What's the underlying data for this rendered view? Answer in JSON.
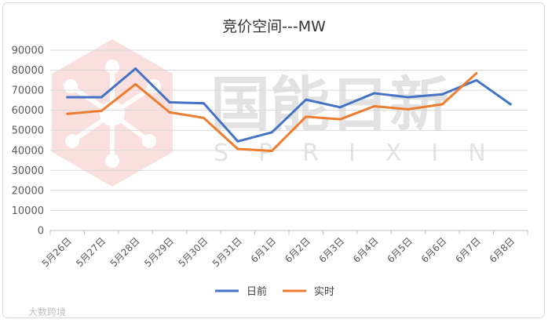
{
  "watermark": {
    "brand": "国能日新",
    "brand_en": "SPRIXIN"
  },
  "credit": "大数跨境",
  "chart_data": {
    "type": "line",
    "title": "竞价空间---MW",
    "xlabel": "",
    "ylabel": "",
    "categories": [
      "5月26日",
      "5月27日",
      "5月28日",
      "5月29日",
      "5月30日",
      "5月31日",
      "6月1日",
      "6月2日",
      "6月3日",
      "6月4日",
      "6月5日",
      "6月6日",
      "6月7日",
      "6月8日"
    ],
    "ylim": [
      0,
      90000
    ],
    "yticks": [
      "0",
      "10000",
      "20000",
      "30000",
      "40000",
      "50000",
      "60000",
      "70000",
      "80000",
      "90000"
    ],
    "grid": true,
    "legend_position": "bottom",
    "series": [
      {
        "name": "日前",
        "color": "#4472C4",
        "values": [
          66500,
          66500,
          80800,
          64000,
          63500,
          44500,
          49000,
          65300,
          61500,
          68500,
          66500,
          68000,
          75000,
          63000
        ]
      },
      {
        "name": "实时",
        "color": "#ED7D31",
        "values": [
          58200,
          59700,
          73000,
          59000,
          56200,
          40700,
          39700,
          56800,
          55500,
          62000,
          60500,
          63000,
          78500,
          null
        ]
      }
    ]
  }
}
